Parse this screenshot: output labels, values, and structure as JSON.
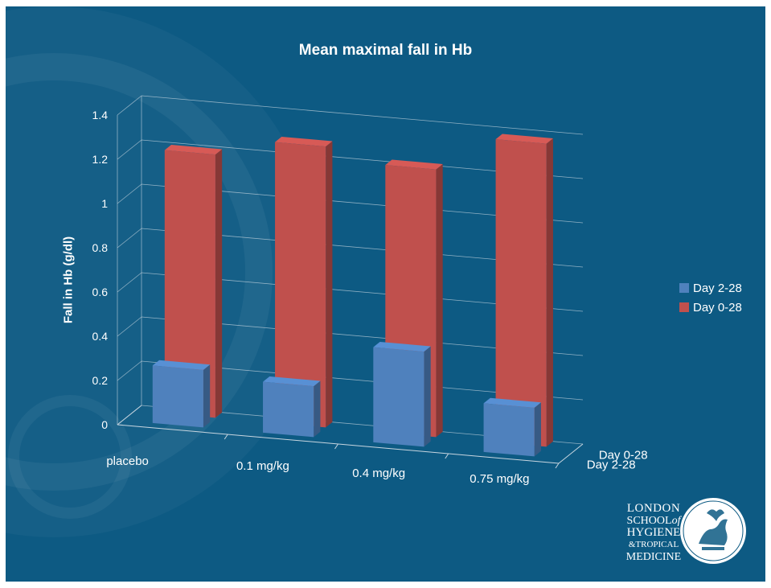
{
  "chart_data": {
    "type": "bar",
    "title": "Mean maximal fall in Hb",
    "ylabel": "Fall in Hb (g/dl)",
    "categories": [
      "placebo",
      "0.1 mg/kg",
      "0.4 mg/kg",
      "0.75 mg/kg"
    ],
    "depth_labels": [
      "Day 0-28",
      "Day 2-28"
    ],
    "series": [
      {
        "name": "Day 2-28",
        "color": "#4f81bd",
        "values": [
          0.26,
          0.23,
          0.43,
          0.22
        ]
      },
      {
        "name": "Day 0-28",
        "color": "#c0504d",
        "values": [
          1.19,
          1.27,
          1.21,
          1.37
        ]
      }
    ],
    "yticks": [
      "0",
      "0.2",
      "0.4",
      "0.6",
      "0.8",
      "1",
      "1.2",
      "1.4"
    ],
    "ylim": [
      0,
      1.4
    ],
    "grid": true,
    "legend_position": "right",
    "view": "3d-perspective"
  },
  "logo": {
    "line1": "LONDON",
    "line2a": "SCHOOL",
    "line2b": "of",
    "line3": "HYGIENE",
    "line4": "&TROPICAL",
    "line5": "MEDICINE",
    "crest_icon": "school-crest-icon"
  }
}
